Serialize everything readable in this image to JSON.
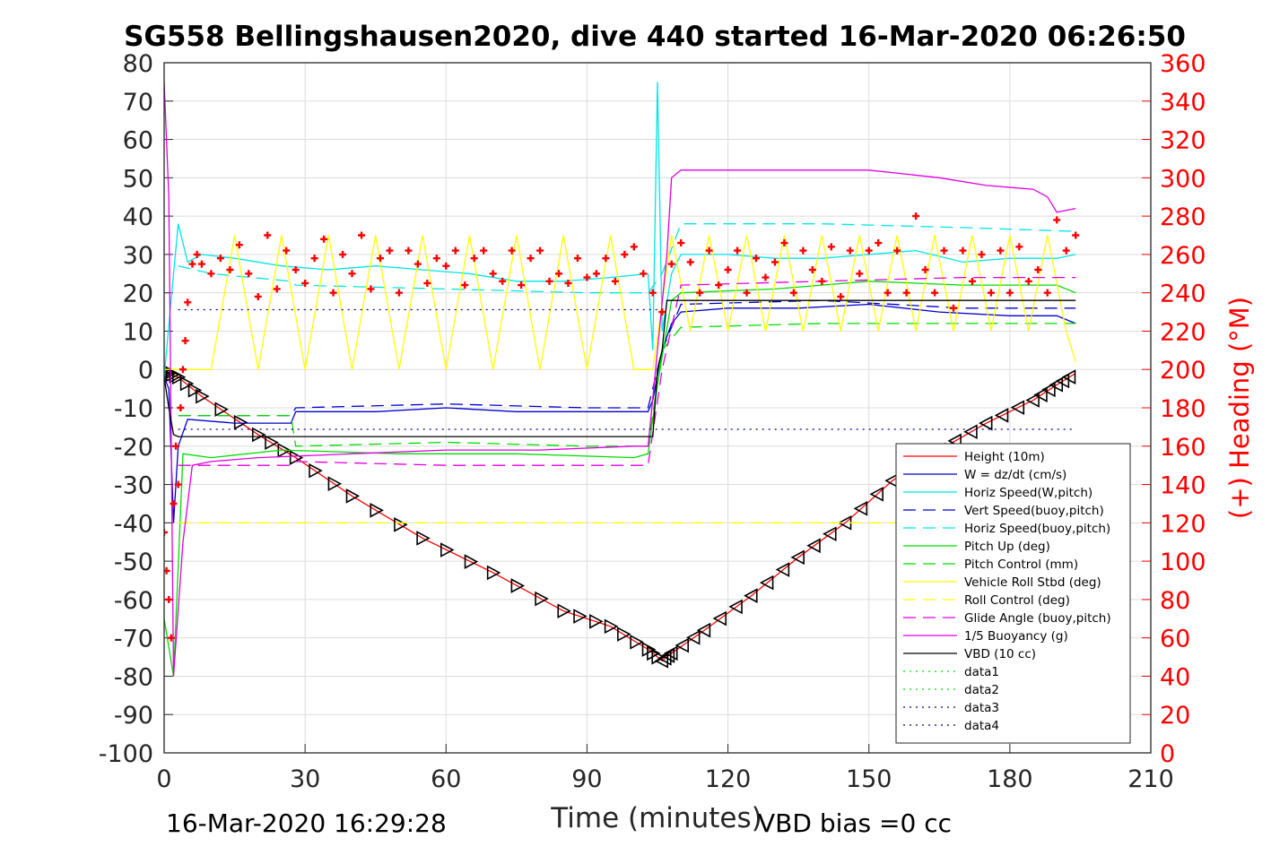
{
  "chart_data": {
    "type": "line",
    "title": "SG558 Bellingshausen2020, dive 440 started 16-Mar-2020 06:26:50",
    "xlabel": "Time (minutes)",
    "ylabel_right": "(+) Heading (°M)",
    "xlim": [
      0,
      210
    ],
    "ylim": [
      -100,
      80
    ],
    "ylim_right": [
      0,
      360
    ],
    "x_ticks": [
      "0",
      "30",
      "60",
      "90",
      "120",
      "150",
      "180",
      "210"
    ],
    "y_ticks": [
      "80",
      "70",
      "60",
      "50",
      "40",
      "30",
      "20",
      "10",
      "0",
      "-10",
      "-20",
      "-30",
      "-40",
      "-50",
      "-60",
      "-70",
      "-80",
      "-90",
      "-100"
    ],
    "y_ticks_right": [
      "360",
      "340",
      "320",
      "300",
      "280",
      "260",
      "240",
      "220",
      "200",
      "180",
      "160",
      "140",
      "120",
      "100",
      "80",
      "60",
      "40",
      "20",
      "0"
    ],
    "grid": true,
    "legend_position": "bottom-right",
    "footer_left": "16-Mar-2020 16:29:28",
    "footer_right": "VBD bias =0 cc",
    "series": [
      {
        "name": "Height (10m)",
        "color": "#ff0000",
        "style": "solid",
        "x": [
          0,
          1,
          3,
          8,
          20,
          28,
          40,
          55,
          70,
          85,
          95,
          103,
          106,
          108,
          115,
          125,
          135,
          145,
          155,
          165,
          175,
          185,
          190,
          194
        ],
        "y": [
          0,
          -1,
          -2,
          -7,
          -17,
          -23,
          -33,
          -44,
          -53,
          -63,
          -67,
          -73,
          -76,
          -74,
          -68,
          -59,
          -49,
          -40,
          -29,
          -21,
          -14,
          -8,
          -4,
          -1
        ]
      },
      {
        "name": "W = dz/dt (cm/s)",
        "color": "#0000cc",
        "style": "solid",
        "x": [
          0,
          1,
          2,
          3,
          5,
          15,
          27,
          28,
          45,
          60,
          75,
          90,
          103,
          104,
          106,
          108,
          110,
          120,
          135,
          150,
          165,
          180,
          190,
          194
        ],
        "y": [
          -2,
          -5,
          -40,
          -20,
          -13,
          -14,
          -14,
          -11,
          -11,
          -10,
          -11,
          -11,
          -11,
          -8,
          5,
          12,
          15,
          16,
          16,
          17,
          15,
          14,
          14,
          12
        ]
      },
      {
        "name": "Horiz Speed(W,pitch)",
        "color": "#00e5e5",
        "style": "solid",
        "x": [
          0,
          2,
          3,
          5,
          8,
          15,
          25,
          35,
          45,
          55,
          65,
          75,
          85,
          95,
          103,
          104,
          105,
          106,
          108,
          110,
          120,
          130,
          140,
          150,
          160,
          170,
          180,
          190,
          194
        ],
        "y": [
          -2,
          25,
          38,
          28,
          30,
          29,
          27,
          26,
          27,
          26,
          25,
          23,
          23,
          24,
          25,
          5,
          75,
          10,
          25,
          30,
          30,
          29,
          29,
          30,
          31,
          28,
          29,
          29,
          30
        ]
      },
      {
        "name": "Vert Speed(buoy,pitch)",
        "color": "#0000cc",
        "style": "dashed",
        "x": [
          3,
          10,
          27,
          28,
          60,
          90,
          103,
          106,
          110,
          140,
          170,
          194
        ],
        "y": [
          -12,
          -12,
          -12,
          -10,
          -9,
          -10,
          -10,
          5,
          17,
          18,
          16,
          16
        ]
      },
      {
        "name": "Horiz Speed(buoy,pitch)",
        "color": "#00e5e5",
        "style": "dashed",
        "x": [
          3,
          10,
          27,
          28,
          60,
          90,
          103,
          106,
          110,
          140,
          170,
          194
        ],
        "y": [
          27,
          25,
          23,
          22,
          21,
          20,
          20,
          25,
          38,
          38,
          37,
          36
        ]
      },
      {
        "name": "Pitch Up (deg)",
        "color": "#00dd00",
        "style": "solid",
        "x": [
          0,
          2,
          4,
          10,
          25,
          50,
          75,
          100,
          103,
          105,
          108,
          110,
          130,
          150,
          170,
          190,
          194
        ],
        "y": [
          -65,
          -80,
          -22,
          -23,
          -21,
          -22,
          -22,
          -23,
          -22,
          -4,
          18,
          20,
          21,
          23,
          22,
          22,
          20
        ]
      },
      {
        "name": "Pitch Control (mm)",
        "color": "#00dd00",
        "style": "dashed",
        "x": [
          3,
          10,
          27,
          28,
          60,
          90,
          103,
          106,
          110,
          140,
          170,
          194
        ],
        "y": [
          -12,
          -12,
          -12,
          -20,
          -19,
          -20,
          -20,
          5,
          11,
          12,
          12,
          12
        ]
      },
      {
        "name": "Vehicle Roll Stbd (deg)",
        "color": "#ffff00",
        "style": "solid",
        "x": [
          0,
          3,
          7,
          10,
          15,
          20,
          25,
          30,
          35,
          40,
          45,
          50,
          55,
          60,
          65,
          70,
          75,
          80,
          85,
          90,
          95,
          100,
          104,
          108,
          112,
          116,
          120,
          124,
          128,
          132,
          136,
          140,
          144,
          148,
          152,
          156,
          160,
          164,
          168,
          172,
          176,
          180,
          184,
          188,
          192,
          194
        ],
        "y": [
          0,
          0,
          0,
          0,
          35,
          0,
          35,
          0,
          35,
          0,
          35,
          0,
          35,
          0,
          35,
          0,
          35,
          0,
          35,
          0,
          35,
          0,
          0,
          35,
          10,
          35,
          10,
          35,
          10,
          35,
          10,
          35,
          10,
          35,
          10,
          35,
          10,
          35,
          10,
          35,
          10,
          35,
          10,
          35,
          10,
          2
        ]
      },
      {
        "name": "Roll Control (deg)",
        "color": "#ffff00",
        "style": "dashed",
        "x": [
          3,
          194
        ],
        "y": [
          -40,
          -40
        ]
      },
      {
        "name": "Glide Angle (buoy,pitch)",
        "color": "#e000e0",
        "style": "dashed",
        "x": [
          3,
          10,
          27,
          28,
          60,
          90,
          103,
          106,
          110,
          140,
          170,
          194
        ],
        "y": [
          -25,
          -25,
          -25,
          -24,
          -25,
          -25,
          -25,
          0,
          22,
          23,
          24,
          24
        ]
      },
      {
        "name": "1/5 Buoyancy (g)",
        "color": "#e000e0",
        "style": "solid",
        "x": [
          0,
          1,
          2,
          4,
          6,
          10,
          20,
          40,
          60,
          80,
          100,
          103,
          105,
          107,
          108,
          110,
          130,
          150,
          165,
          175,
          185,
          188,
          190,
          194
        ],
        "y": [
          75,
          45,
          -80,
          -45,
          -25,
          -24,
          -23,
          -22,
          -21,
          -21,
          -20,
          -20,
          5,
          30,
          50,
          52,
          52,
          52,
          50,
          48,
          47,
          45,
          41,
          42
        ]
      },
      {
        "name": "VBD (10 cc)",
        "color": "#000000",
        "style": "solid",
        "x": [
          0,
          1,
          2,
          3,
          103,
          104,
          105,
          106,
          107,
          194
        ],
        "y": [
          -2,
          -10,
          -17,
          -17.5,
          -17.5,
          -17.5,
          0,
          5,
          18,
          18
        ]
      },
      {
        "name": "data1",
        "color": "#00dd00",
        "style": "dotted",
        "x": [],
        "y": []
      },
      {
        "name": "data2",
        "color": "#00dd00",
        "style": "dotted",
        "x": [],
        "y": []
      },
      {
        "name": "data3",
        "color": "#000099",
        "style": "dotted",
        "x": [
          3,
          194
        ],
        "y": [
          -15.6,
          -15.6
        ]
      },
      {
        "name": "data4",
        "color": "#000099",
        "style": "dotted",
        "x": [
          3,
          105
        ],
        "y": [
          15.6,
          15.6
        ]
      },
      {
        "axis": "right",
        "color": "#ff0000",
        "marker": "+",
        "x": [
          0,
          0.5,
          1,
          1.5,
          2,
          2.5,
          3,
          3.5,
          4,
          4.5,
          5,
          6,
          7,
          8,
          10,
          12,
          14,
          16,
          18,
          20,
          22,
          24,
          26,
          28,
          30,
          32,
          34,
          36,
          38,
          40,
          42,
          44,
          46,
          48,
          50,
          52,
          54,
          56,
          58,
          60,
          62,
          64,
          66,
          68,
          70,
          72,
          74,
          76,
          78,
          80,
          82,
          84,
          86,
          88,
          90,
          92,
          94,
          96,
          98,
          100,
          102,
          104,
          106,
          108,
          110,
          112,
          114,
          116,
          118,
          120,
          122,
          124,
          126,
          128,
          130,
          132,
          134,
          136,
          138,
          140,
          142,
          144,
          146,
          148,
          150,
          152,
          154,
          156,
          158,
          160,
          162,
          164,
          166,
          168,
          170,
          172,
          174,
          176,
          178,
          180,
          182,
          184,
          186,
          188,
          190,
          192,
          194
        ],
        "y": [
          115,
          95,
          80,
          60,
          130,
          160,
          140,
          180,
          200,
          215,
          235,
          255,
          260,
          255,
          250,
          258,
          252,
          265,
          250,
          238,
          270,
          242,
          262,
          252,
          245,
          258,
          268,
          240,
          260,
          250,
          270,
          242,
          258,
          262,
          240,
          262,
          255,
          245,
          258,
          254,
          262,
          244,
          258,
          262,
          250,
          246,
          262,
          244,
          258,
          262,
          246,
          250,
          245,
          258,
          248,
          250,
          258,
          246,
          260,
          264,
          250,
          240,
          230,
          255,
          266,
          256,
          240,
          262,
          244,
          252,
          262,
          240,
          258,
          248,
          256,
          266,
          240,
          262,
          252,
          246,
          264,
          238,
          262,
          250,
          262,
          266,
          240,
          262,
          240,
          280,
          252,
          240,
          262,
          232,
          262,
          246,
          260,
          240,
          262,
          240,
          264,
          246,
          252,
          240,
          278,
          262,
          270
        ]
      }
    ]
  }
}
